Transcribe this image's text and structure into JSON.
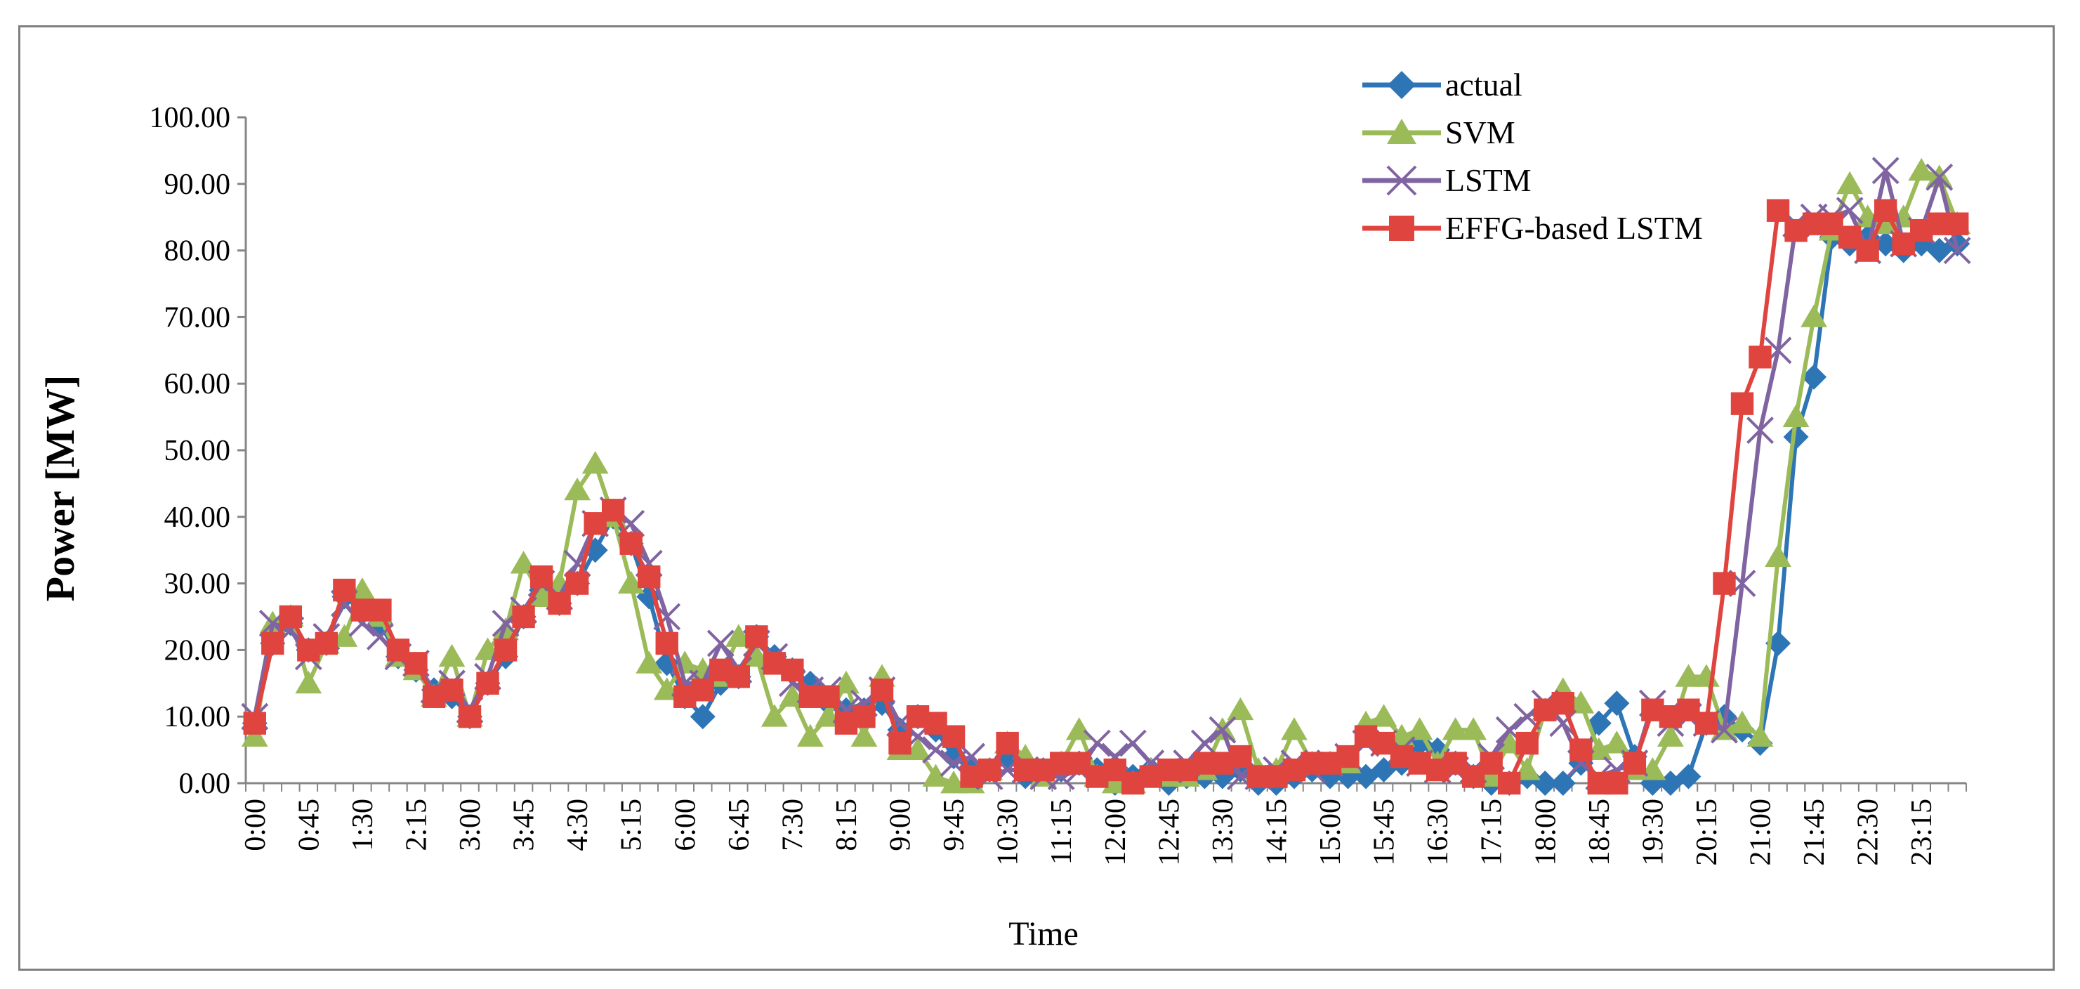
{
  "chart_data": {
    "type": "line",
    "title": "",
    "xlabel": "Time",
    "ylabel": "Power [MW]",
    "ylim": [
      0,
      100
    ],
    "y_ticks": [
      "0.00",
      "10.00",
      "20.00",
      "30.00",
      "40.00",
      "50.00",
      "60.00",
      "70.00",
      "80.00",
      "90.00",
      "100.00"
    ],
    "x_tick_labels": [
      "0:00",
      "0:45",
      "1:30",
      "2:15",
      "3:00",
      "3:45",
      "4:30",
      "5:15",
      "6:00",
      "6:45",
      "7:30",
      "8:15",
      "9:00",
      "9:45",
      "10:30",
      "11:15",
      "12:00",
      "12:45",
      "13:30",
      "14:15",
      "15:00",
      "15:45",
      "16:30",
      "17:15",
      "18:00",
      "18:45",
      "19:30",
      "20:15",
      "21:00",
      "21:45",
      "22:30",
      "23:15"
    ],
    "x_tick_interval_points": 3,
    "points_count": 96,
    "grid": false,
    "legend_position": "top-right",
    "series": [
      {
        "name": "actual",
        "color": "#2E75B6",
        "marker": "diamond",
        "values": [
          9,
          21,
          24,
          20,
          21,
          28,
          26,
          24,
          19,
          17,
          14,
          13,
          10,
          15,
          19,
          25,
          29,
          27,
          30,
          35,
          40,
          36,
          28,
          18,
          13,
          10,
          15,
          16,
          22,
          19,
          17,
          15,
          12,
          11,
          11,
          12,
          8,
          10,
          8,
          4,
          2,
          2,
          4,
          1,
          2,
          2,
          3,
          2,
          0,
          1,
          2,
          0,
          1,
          1,
          1,
          2,
          0,
          0,
          1,
          2,
          1,
          1,
          1,
          2,
          3,
          6,
          5,
          3,
          1,
          0,
          0,
          1,
          0,
          0,
          3,
          9,
          12,
          4,
          0,
          0,
          1,
          9,
          10,
          8,
          6,
          21,
          52,
          61,
          82,
          81,
          82,
          81,
          80,
          81,
          80,
          81
        ]
      },
      {
        "name": "SVM",
        "color": "#9BBB59",
        "marker": "triangle",
        "values": [
          7,
          24,
          25,
          15,
          21,
          22,
          29,
          25,
          19,
          17,
          13,
          19,
          10,
          20,
          23,
          33,
          28,
          30,
          44,
          48,
          40,
          30,
          18,
          14,
          18,
          17,
          16,
          22,
          19,
          10,
          13,
          7,
          10,
          15,
          7,
          16,
          5,
          5,
          1,
          0,
          0,
          2,
          6,
          4,
          1,
          3,
          8,
          1,
          0,
          0,
          2,
          1,
          1,
          2,
          8,
          11,
          2,
          2,
          8,
          3,
          3,
          3,
          9,
          10,
          7,
          8,
          3,
          8,
          8,
          1,
          6,
          2,
          11,
          14,
          12,
          5,
          6,
          2,
          2,
          7,
          16,
          16,
          8,
          9,
          7,
          34,
          55,
          70,
          83,
          90,
          85,
          84,
          85,
          92,
          91,
          84
        ]
      },
      {
        "name": "LSTM",
        "color": "#8064A2",
        "marker": "x",
        "values": [
          10,
          24,
          23,
          19,
          22,
          27,
          24,
          22,
          19,
          18,
          14,
          15,
          11,
          16,
          24,
          26,
          30,
          28,
          33,
          39,
          41,
          39,
          33,
          25,
          15,
          15,
          21,
          17,
          21,
          19,
          15,
          14,
          14,
          11,
          12,
          14,
          9,
          7,
          5,
          3,
          4,
          1,
          2,
          2,
          1,
          1,
          2,
          6,
          4,
          6,
          3,
          2,
          3,
          6,
          8,
          1,
          1,
          2,
          3,
          2,
          3,
          4,
          6,
          6,
          5,
          3,
          2,
          2,
          2,
          4,
          8,
          10,
          12,
          9,
          3,
          1,
          2,
          3,
          12,
          9,
          10,
          9,
          8,
          30,
          53,
          65,
          84,
          85,
          85,
          86,
          80,
          92,
          81,
          83,
          91,
          80
        ]
      },
      {
        "name": "EFFG-based LSTM",
        "color": "#E0443E",
        "marker": "square",
        "values": [
          9,
          21,
          25,
          20,
          21,
          29,
          26,
          26,
          20,
          18,
          13,
          14,
          10,
          15,
          20,
          25,
          31,
          27,
          30,
          39,
          41,
          36,
          31,
          21,
          13,
          14,
          17,
          16,
          22,
          18,
          17,
          13,
          13,
          9,
          10,
          14,
          6,
          10,
          9,
          7,
          1,
          2,
          6,
          2,
          2,
          3,
          3,
          1,
          2,
          0,
          1,
          2,
          2,
          3,
          3,
          4,
          1,
          1,
          2,
          3,
          3,
          4,
          7,
          6,
          4,
          3,
          2,
          3,
          1,
          3,
          0,
          6,
          11,
          12,
          5,
          0,
          0,
          3,
          11,
          10,
          11,
          9,
          30,
          57,
          64,
          86,
          83,
          84,
          84,
          82,
          80,
          86,
          81,
          83,
          84,
          84
        ]
      }
    ]
  }
}
